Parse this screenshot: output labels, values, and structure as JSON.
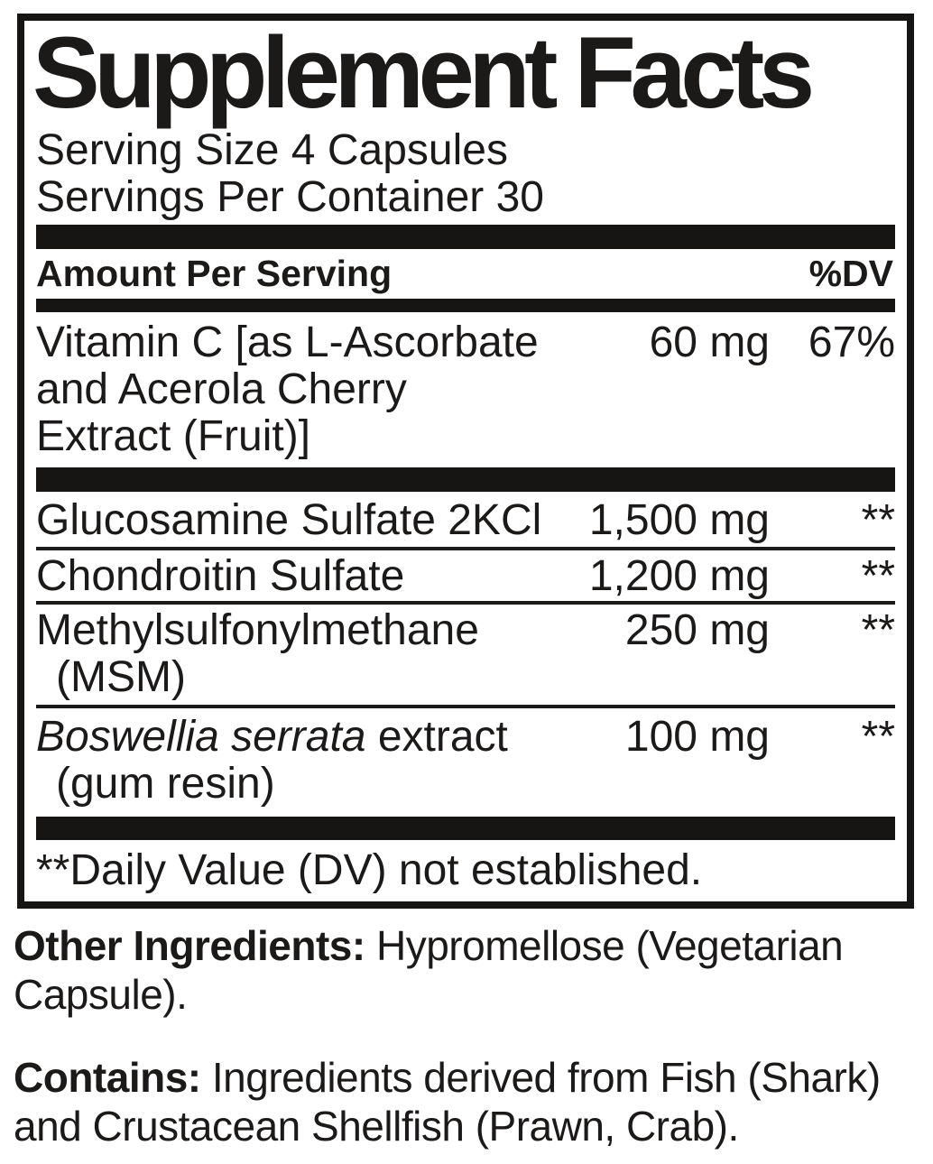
{
  "panel": {
    "title": "Supplement Facts",
    "serving_size": "Serving Size 4 Capsules",
    "servings_per_container": "Servings Per Container 30",
    "header": {
      "amount_label": "Amount Per Serving",
      "dv_label": "%DV"
    },
    "rows": [
      {
        "name_lines": [
          "Vitamin C [as L-Ascorbate",
          "and Acerola Cherry",
          "Extract (Fruit)]"
        ],
        "amount": "60 mg",
        "dv": "67%"
      },
      {
        "name_lines": [
          "Glucosamine Sulfate 2KCl"
        ],
        "amount": "1,500 mg",
        "dv": "**"
      },
      {
        "name_lines": [
          "Chondroitin Sulfate"
        ],
        "amount": "1,200 mg",
        "dv": "**"
      },
      {
        "name": "Methylsulfonylmethane",
        "subname": "(MSM)",
        "amount": "250 mg",
        "dv": "**"
      },
      {
        "name_italic": "Boswellia serrata",
        "name_rest": " extract",
        "subname": "(gum resin)",
        "amount": "100 mg",
        "dv": "**"
      }
    ],
    "footnote": "**Daily Value (DV) not established."
  },
  "other_ingredients": {
    "label": "Other Ingredients:",
    "text": " Hypromellose (Vegetarian Capsule)."
  },
  "contains": {
    "label": "Contains:",
    "text": " Ingredients derived from Fish (Shark) and Crustacean Shellfish (Prawn, Crab)."
  },
  "colors": {
    "ink": "#1c1a19",
    "bar": "#171513",
    "background": "#ffffff"
  }
}
